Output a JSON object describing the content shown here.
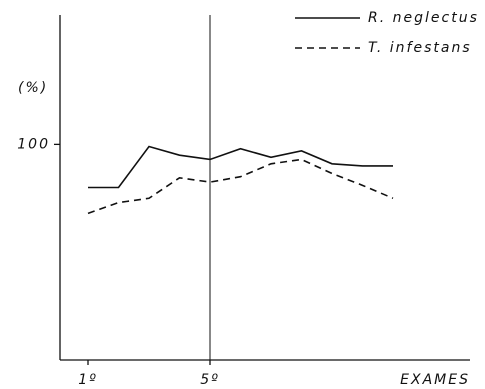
{
  "chart_data": {
    "type": "line",
    "y_label": "(%)",
    "x_label": "EXAMES",
    "categories": [
      "1º",
      null,
      null,
      null,
      "5º",
      null,
      null,
      null,
      null,
      null,
      null
    ],
    "series": [
      {
        "name": "R. neglectus",
        "color": "#111111",
        "dash": false,
        "values": [
          80,
          80,
          99,
          95,
          93,
          98,
          94,
          97,
          91,
          90,
          90
        ]
      },
      {
        "name": "T. infestans",
        "color": "#111111",
        "dash": true,
        "values": [
          68,
          73,
          75,
          84.5,
          82.5,
          85,
          91,
          93,
          86.5,
          81,
          75
        ]
      }
    ],
    "ylim": [
      0,
      160
    ],
    "yticks": [
      100
    ],
    "reference_line_category": 4,
    "grid": false,
    "legend": "top-right"
  }
}
